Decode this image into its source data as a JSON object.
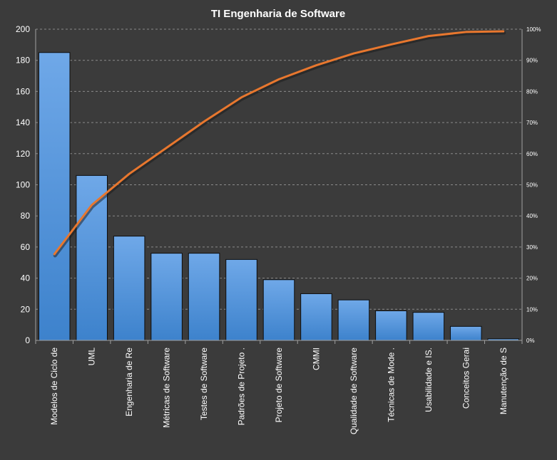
{
  "colors": {
    "background": "#3b3b3b",
    "gridline": "#8a8a8a",
    "axis_text": "#ffffff",
    "title_text": "#ffffff",
    "bar_top": "#6fa8e8",
    "bar_bottom": "#3d82cc",
    "bar_stroke": "#0d0d0d",
    "cumulative_line": "#e8772e",
    "cumulative_line_shadow": "#1a1a1a"
  },
  "chart_data": {
    "type": "bar",
    "subtype": "pareto",
    "title": "TI Engenharia de Software",
    "xlabel": "",
    "ylabel": "",
    "categories": [
      "Modelos de Ciclo de",
      "UML",
      "Engenharia de Re",
      "Métricas de Software",
      "Testes de Software",
      "Padrões de Projeto .",
      "Projeto de Software",
      "CMMI",
      "Qualidade de Software",
      "Técnicas de Mode .",
      "Usabilidade e IS.",
      "Conceitos Gerai",
      "Manutenção de S"
    ],
    "series": [
      {
        "type": "bar",
        "axis": "left",
        "values": [
          185,
          106,
          67,
          56,
          56,
          52,
          39,
          30,
          26,
          19,
          18,
          9,
          1
        ]
      },
      {
        "type": "line",
        "axis": "right",
        "values": [
          27.7,
          43.5,
          53.5,
          61.9,
          70.3,
          78.1,
          83.9,
          88.4,
          92.2,
          95.1,
          97.8,
          99.1,
          99.3
        ]
      }
    ],
    "ylim": [
      0,
      200
    ],
    "yticks": [
      0,
      20,
      40,
      60,
      80,
      100,
      120,
      140,
      160,
      180,
      200
    ],
    "y2lim": [
      0,
      100
    ],
    "y2ticks": [
      "0%",
      "10%",
      "20%",
      "30%",
      "40%",
      "50%",
      "60%",
      "70%",
      "80%",
      "90%",
      "100%"
    ],
    "grid": true,
    "legend": "none"
  }
}
